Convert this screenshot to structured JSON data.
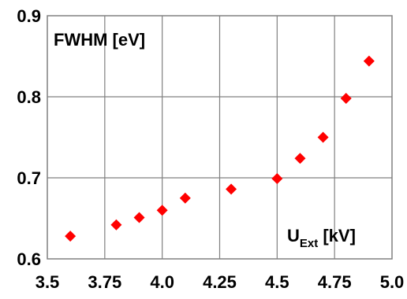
{
  "chart_data": {
    "type": "scatter",
    "ylabel": "FWHM [eV]",
    "xlabel_main": "U",
    "xlabel_sub": "Ext",
    "xlabel_unit": " [kV]",
    "xlim": [
      3.5,
      5.0
    ],
    "ylim": [
      0.6,
      0.9
    ],
    "x_ticks": [
      3.5,
      3.75,
      4.0,
      4.25,
      4.5,
      4.75,
      5.0
    ],
    "x_tick_labels": [
      "3.5",
      "3.75",
      "4.0",
      "4.25",
      "4.5",
      "4.75",
      "5.0"
    ],
    "y_ticks": [
      0.6,
      0.7,
      0.8,
      0.9
    ],
    "y_tick_labels": [
      "0.6",
      "0.7",
      "0.8",
      "0.9"
    ],
    "grid": true,
    "marker": "diamond",
    "marker_color": "#ff0000",
    "x": [
      3.6,
      3.8,
      3.9,
      4.0,
      4.1,
      4.3,
      4.5,
      4.6,
      4.7,
      4.8,
      4.9
    ],
    "y": [
      0.628,
      0.642,
      0.651,
      0.66,
      0.675,
      0.686,
      0.699,
      0.724,
      0.75,
      0.798,
      0.844
    ]
  }
}
